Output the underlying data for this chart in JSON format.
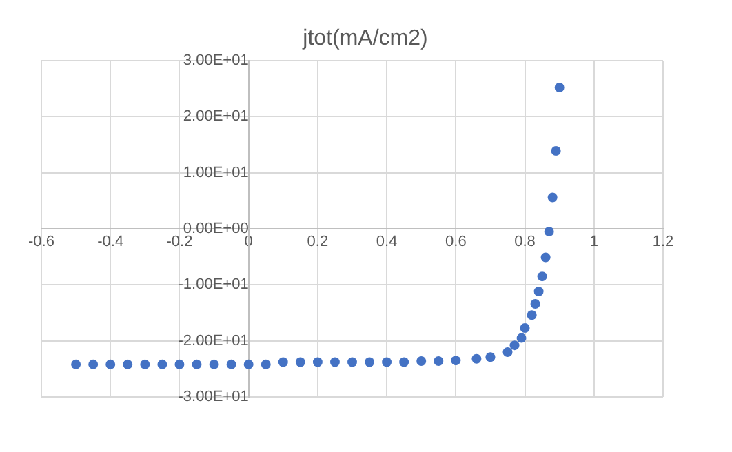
{
  "chart_data": {
    "type": "scatter",
    "title": "jtot(mA/cm2)",
    "xlim": [
      -0.6,
      1.2
    ],
    "xticks": [
      -0.6,
      -0.4,
      -0.2,
      0,
      0.2,
      0.4,
      0.6,
      0.8,
      1,
      1.2
    ],
    "ylim": [
      -30,
      30
    ],
    "yticks": [
      {
        "value": -30,
        "label": "-3.00E+01"
      },
      {
        "value": -20,
        "label": "-2.00E+01"
      },
      {
        "value": -10,
        "label": "-1.00E+01"
      },
      {
        "value": 0,
        "label": "0.00E+00"
      },
      {
        "value": 10,
        "label": "1.00E+01"
      },
      {
        "value": 20,
        "label": "2.00E+01"
      },
      {
        "value": 30,
        "label": "3.00E+01"
      }
    ],
    "grid": true,
    "marker": "circle",
    "series": [
      {
        "color": "#4472c4",
        "x": [
          -0.5,
          -0.45,
          -0.4,
          -0.35,
          -0.3,
          -0.25,
          -0.2,
          -0.15,
          -0.1,
          -0.05,
          0,
          0.05,
          0.1,
          0.15,
          0.2,
          0.25,
          0.3,
          0.35,
          0.4,
          0.45,
          0.5,
          0.55,
          0.6,
          0.66,
          0.7,
          0.75,
          0.77,
          0.79,
          0.8,
          0.82,
          0.83,
          0.84,
          0.85,
          0.86,
          0.87,
          0.88,
          0.89,
          0.9
        ],
        "values": [
          -24.2,
          -24.2,
          -24.2,
          -24.2,
          -24.2,
          -24.2,
          -24.2,
          -24.2,
          -24.2,
          -24.2,
          -24.2,
          -24.2,
          -23.8,
          -23.8,
          -23.8,
          -23.8,
          -23.8,
          -23.8,
          -23.8,
          -23.8,
          -23.6,
          -23.6,
          -23.5,
          -23.2,
          -22.9,
          -22,
          -20.8,
          -19.5,
          -17.7,
          -15.4,
          -13.4,
          -11.2,
          -8.5,
          -5.1,
          -0.5,
          5.6,
          13.9,
          25.2
        ]
      }
    ]
  }
}
